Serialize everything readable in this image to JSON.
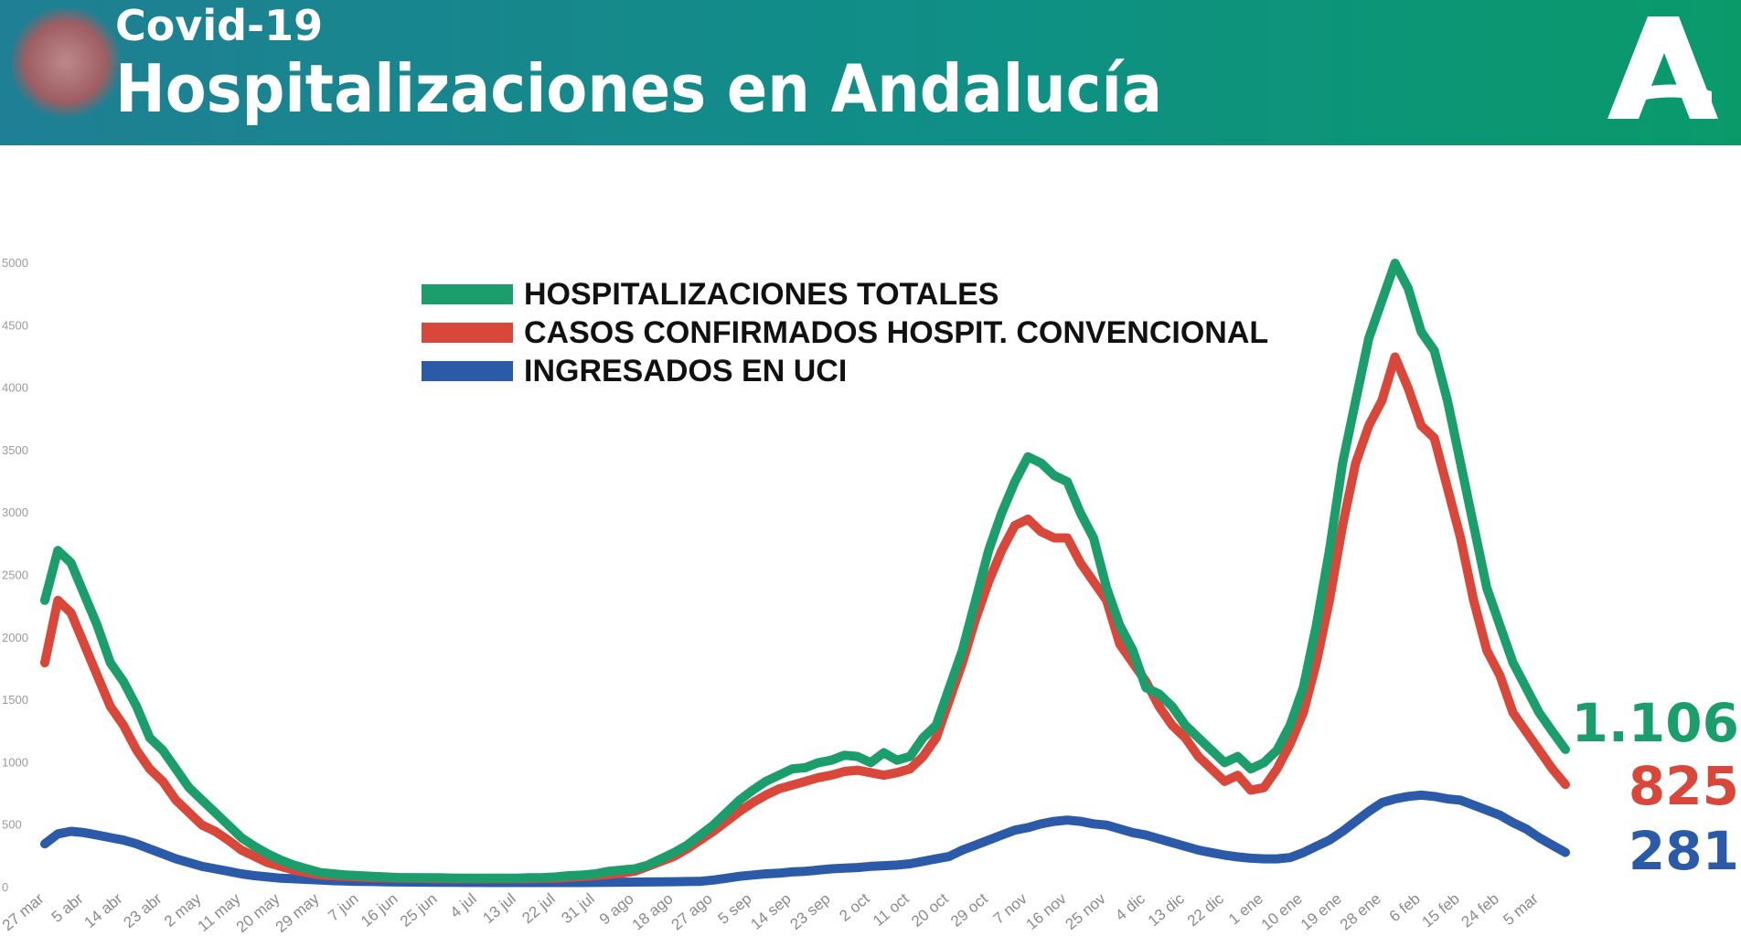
{
  "chart_data": {
    "type": "line",
    "subtitle": "Covid-19",
    "title": "Hospitalizaciones en Andalucía",
    "categories": [
      "27 mar",
      null,
      null,
      "5 abr",
      null,
      null,
      "14 abr",
      null,
      null,
      "23 abr",
      null,
      null,
      "2 may",
      null,
      null,
      "11 may",
      null,
      null,
      "20 may",
      null,
      null,
      "29 may",
      null,
      null,
      "7 jun",
      null,
      null,
      "16 jun",
      null,
      null,
      "25 jun",
      null,
      null,
      "4 jul",
      null,
      null,
      "13 jul",
      null,
      null,
      "22 jul",
      null,
      null,
      "31 jul",
      null,
      null,
      "9 ago",
      null,
      null,
      "18 ago",
      null,
      null,
      "27 ago",
      null,
      null,
      "5 sep",
      null,
      null,
      "14 sep",
      null,
      null,
      "23 sep",
      null,
      null,
      "2 oct",
      null,
      null,
      "11 oct",
      null,
      null,
      "20 oct",
      null,
      null,
      "29 oct",
      null,
      null,
      "7 nov",
      null,
      null,
      "16 nov",
      null,
      null,
      "25 nov",
      null,
      null,
      "4 dic",
      null,
      null,
      "13 dic",
      null,
      null,
      "22 dic",
      null,
      null,
      "1 ene",
      null,
      null,
      "10 ene",
      null,
      null,
      "19 ene",
      null,
      null,
      "28 ene",
      null,
      null,
      "6 feb",
      null,
      null,
      "15 feb",
      null,
      null,
      "24 feb",
      null,
      null,
      "5 mar",
      null,
      null
    ],
    "series": [
      {
        "name": "HOSPITALIZACIONES TOTALES",
        "color": "#1c9e6c",
        "values": [
          2300,
          2700,
          2600,
          2350,
          2100,
          1800,
          1650,
          1450,
          1200,
          1100,
          950,
          800,
          700,
          600,
          500,
          400,
          330,
          270,
          220,
          180,
          150,
          120,
          110,
          100,
          95,
          90,
          85,
          80,
          80,
          78,
          78,
          76,
          75,
          75,
          75,
          75,
          75,
          78,
          80,
          85,
          95,
          100,
          110,
          130,
          140,
          150,
          180,
          230,
          280,
          340,
          420,
          500,
          600,
          700,
          780,
          850,
          900,
          950,
          960,
          1000,
          1020,
          1060,
          1050,
          1000,
          1080,
          1020,
          1050,
          1200,
          1300,
          1600,
          1900,
          2300,
          2700,
          3000,
          3250,
          3450,
          3400,
          3300,
          3250,
          3000,
          2800,
          2400,
          2100,
          1900,
          1600,
          1550,
          1450,
          1300,
          1200,
          1100,
          1000,
          1050,
          950,
          1000,
          1100,
          1300,
          1600,
          2100,
          2700,
          3400,
          3900,
          4400,
          4700,
          5000,
          4800,
          4450,
          4300,
          3900,
          3400,
          2900,
          2400,
          2100,
          1800,
          1600,
          1400,
          1250,
          1106
        ],
        "value_labels": [
          null,
          null,
          null,
          null,
          null,
          null,
          null,
          null,
          null,
          null,
          null,
          null,
          null,
          null,
          null,
          null,
          null,
          null,
          null,
          null,
          null,
          null,
          null,
          null,
          null,
          null,
          null,
          null,
          null,
          null,
          null,
          null,
          null,
          null,
          null,
          null,
          null,
          null,
          null,
          null,
          null,
          null,
          null,
          null,
          null,
          null,
          null,
          null,
          null,
          null,
          null,
          null,
          null,
          null,
          null,
          null,
          null,
          null,
          null,
          null,
          null,
          null,
          null,
          null,
          null,
          null,
          null,
          null,
          null,
          null,
          null,
          null,
          null,
          null,
          null,
          null,
          null,
          null,
          null,
          null,
          null,
          null,
          null,
          null,
          null,
          null,
          null,
          null,
          null,
          null,
          null,
          null,
          null,
          null,
          null,
          null,
          null,
          null,
          null,
          null,
          null,
          null,
          null,
          null,
          null,
          null,
          null,
          null,
          null,
          null,
          null,
          null,
          null,
          null,
          null,
          null,
          "1.106"
        ]
      },
      {
        "name": "CASOS CONFIRMADOS HOSPIT. CONVENCIONAL",
        "color": "#d9473a",
        "values": [
          1800,
          2300,
          2200,
          1950,
          1700,
          1450,
          1300,
          1100,
          950,
          850,
          700,
          600,
          500,
          450,
          380,
          300,
          250,
          200,
          170,
          140,
          120,
          100,
          95,
          90,
          85,
          80,
          78,
          75,
          75,
          73,
          72,
          72,
          70,
          70,
          70,
          70,
          70,
          72,
          73,
          75,
          82,
          88,
          95,
          105,
          115,
          130,
          170,
          210,
          250,
          310,
          380,
          450,
          530,
          610,
          680,
          740,
          790,
          820,
          850,
          880,
          900,
          930,
          940,
          920,
          900,
          920,
          950,
          1050,
          1200,
          1500,
          1800,
          2150,
          2450,
          2700,
          2900,
          2950,
          2850,
          2800,
          2800,
          2600,
          2450,
          2300,
          1950,
          1800,
          1650,
          1450,
          1300,
          1200,
          1050,
          950,
          850,
          900,
          780,
          800,
          950,
          1150,
          1400,
          1800,
          2300,
          2900,
          3400,
          3700,
          3900,
          4250,
          4000,
          3700,
          3600,
          3200,
          2800,
          2300,
          1900,
          1700,
          1400,
          1250,
          1100,
          950,
          825
        ]
      },
      {
        "name": "INGRESADOS EN UCI",
        "color": "#2b5ba8",
        "values": [
          350,
          430,
          450,
          440,
          420,
          400,
          380,
          350,
          310,
          270,
          230,
          200,
          170,
          150,
          130,
          110,
          95,
          85,
          75,
          70,
          65,
          60,
          55,
          52,
          50,
          48,
          46,
          45,
          44,
          43,
          42,
          42,
          41,
          41,
          40,
          40,
          40,
          40,
          40,
          40,
          40,
          40,
          41,
          42,
          43,
          44,
          45,
          46,
          47,
          48,
          50,
          60,
          75,
          90,
          100,
          110,
          115,
          125,
          130,
          140,
          150,
          155,
          160,
          170,
          175,
          180,
          190,
          210,
          230,
          250,
          300,
          340,
          380,
          420,
          460,
          480,
          510,
          530,
          540,
          530,
          510,
          500,
          470,
          440,
          420,
          390,
          360,
          330,
          300,
          280,
          260,
          245,
          235,
          230,
          230,
          240,
          280,
          330,
          380,
          450,
          530,
          610,
          680,
          710,
          730,
          740,
          730,
          710,
          700,
          660,
          620,
          580,
          520,
          470,
          400,
          340,
          281
        ]
      }
    ],
    "ylim": [
      0,
      5000
    ],
    "yticks": [
      0,
      500,
      1000,
      1500,
      2000,
      2500,
      3000,
      3500,
      4000,
      4500,
      5000
    ],
    "grid": false
  }
}
